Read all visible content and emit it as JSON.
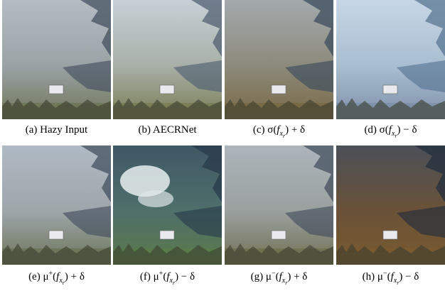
{
  "figure": {
    "captions": [
      {
        "text": "(a) Hazy Input"
      },
      {
        "text": "(b) AECRNet"
      },
      {
        "before": "(c) σ(",
        "var": "f",
        "sub": "x",
        "subsub": "r",
        "after": ") + δ"
      },
      {
        "before": "(d) σ(",
        "var": "f",
        "sub": "x",
        "subsub": "r",
        "after": ") − δ"
      },
      {
        "before": "(e) μ",
        "sup": "+",
        "mid": "(",
        "var": "f",
        "sub": "x",
        "subsub": "r",
        "after": ") + δ"
      },
      {
        "before": "(f) μ",
        "sup": "+",
        "mid": "(",
        "var": "f",
        "sub": "x",
        "subsub": "r",
        "after": ") − δ"
      },
      {
        "before": "(g) μ",
        "sup": "−",
        "mid": "(",
        "var": "f",
        "sub": "x",
        "subsub": "r",
        "after": ") + δ"
      },
      {
        "before": "(h) μ",
        "sup": "−",
        "mid": "(",
        "var": "f",
        "sub": "x",
        "subsub": "r",
        "after": ") − δ"
      }
    ]
  }
}
